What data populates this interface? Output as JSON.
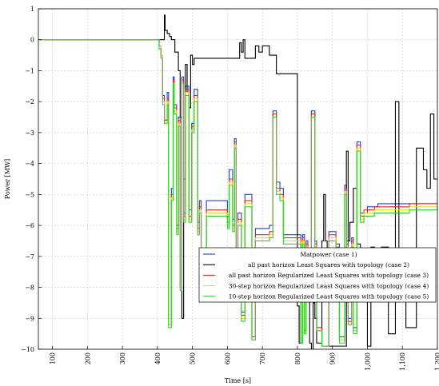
{
  "chart_data": {
    "type": "line",
    "xlabel": "Time [s]",
    "ylabel": "Power [MW]",
    "xlim": [
      60,
      1200
    ],
    "ylim": [
      -10,
      1
    ],
    "grid": true,
    "legend_position": "bottom-right",
    "x_ticks": [
      100,
      200,
      300,
      400,
      500,
      600,
      700,
      800,
      900,
      1000,
      1100,
      1200
    ],
    "x_tick_labels": [
      "100",
      "200",
      "300",
      "400",
      "500",
      "600",
      "700",
      "800",
      "900",
      "1,000",
      "1,100",
      "1,200"
    ],
    "y_ticks": [
      1,
      0,
      -1,
      -2,
      -3,
      -4,
      -5,
      -6,
      -7,
      -8,
      -9,
      -10
    ],
    "y_tick_labels": [
      "1",
      "0",
      "−1",
      "−2",
      "−3",
      "−4",
      "−5",
      "−6",
      "−7",
      "−8",
      "−9",
      "−10"
    ],
    "series": [
      {
        "name": "Matpower (case 1)",
        "color": "#1f3fd6",
        "x": [
          60,
          400,
          405,
          410,
          415,
          420,
          428,
          432,
          440,
          445,
          448,
          455,
          460,
          465,
          470,
          475,
          480,
          490,
          498,
          505,
          515,
          520,
          525,
          540,
          550,
          560,
          580,
          600,
          605,
          615,
          620,
          625,
          630,
          640,
          650,
          660,
          670,
          680,
          685,
          690,
          700,
          710,
          720,
          730,
          740,
          750,
          760,
          770,
          780,
          790,
          800,
          805,
          810,
          815,
          820,
          825,
          830,
          840,
          850,
          855,
          860,
          870,
          875,
          880,
          885,
          890,
          900,
          910,
          920,
          935,
          940,
          945,
          955,
          960,
          970,
          975,
          980,
          990,
          1000,
          1010,
          1020,
          1030,
          1040,
          1050,
          1060,
          1070,
          1080,
          1090,
          1100,
          1110,
          1120,
          1140,
          1160,
          1180,
          1190,
          1200
        ],
        "y": [
          0,
          0,
          -0.2,
          -0.5,
          -1.8,
          -2.6,
          -1.7,
          -9.2,
          -4.8,
          -1.2,
          -2.1,
          -6.0,
          -2.5,
          -8.0,
          -1.2,
          -5.6,
          -1.5,
          -5.5,
          -2.7,
          -1.6,
          -5.9,
          -5.2,
          -8.2,
          -5.2,
          -5.2,
          -5.2,
          -5.2,
          -5.7,
          -4.2,
          -5.8,
          -3.2,
          -6.8,
          -5.6,
          -8.8,
          -5.0,
          -5.0,
          -9.6,
          -6.1,
          -6.1,
          -6.1,
          -6.1,
          -6.1,
          -6.0,
          -2.3,
          -4.6,
          -4.8,
          -6.3,
          -6.3,
          -6.3,
          -6.3,
          -6.3,
          -6.3,
          -9.8,
          -6.3,
          -9.4,
          -6.5,
          -7.0,
          -2.3,
          -6.5,
          -9.3,
          -9.3,
          -9.9,
          -9.9,
          -9.9,
          -9.9,
          -6.2,
          -6.2,
          -6.6,
          -9.6,
          -4.7,
          -6.5,
          -9.0,
          -6.4,
          -9.3,
          -3.3,
          -3.3,
          -5.6,
          -5.6,
          -5.4,
          -5.4,
          -5.4,
          -5.3,
          -5.3,
          -5.3,
          -5.3,
          -5.3,
          -5.3,
          -5.3,
          -5.3,
          -5.3,
          -5.3,
          -5.3,
          -5.3,
          -5.3,
          -5.3,
          -5.5
        ]
      },
      {
        "name": "all past horizon Least Squares with topology (case 2)",
        "color": "#000000",
        "x": [
          60,
          400,
          410,
          420,
          422,
          428,
          435,
          440,
          450,
          460,
          465,
          470,
          475,
          480,
          485,
          490,
          495,
          500,
          505,
          520,
          530,
          560,
          580,
          600,
          610,
          615,
          620,
          630,
          635,
          640,
          645,
          650,
          660,
          665,
          670,
          680,
          690,
          700,
          710,
          720,
          740,
          750,
          760,
          770,
          780,
          790,
          800,
          805,
          810,
          815,
          820,
          825,
          830,
          835,
          840,
          845,
          850,
          855,
          860,
          870,
          875,
          880,
          885,
          890,
          900,
          910,
          920,
          930,
          935,
          940,
          945,
          950,
          960,
          965,
          970,
          980,
          990,
          1000,
          1010,
          1020,
          1030,
          1040,
          1050,
          1060,
          1070,
          1080,
          1090,
          1100,
          1110,
          1120,
          1130,
          1140,
          1150,
          1160,
          1170,
          1180,
          1190,
          1200
        ],
        "y": [
          0,
          0,
          0,
          0.8,
          0.3,
          0.2,
          0.1,
          0.0,
          -0.4,
          -1.0,
          -2.5,
          -9.0,
          -4.5,
          -0.8,
          -1.7,
          -2.2,
          -0.5,
          -0.8,
          -0.6,
          -0.6,
          -0.6,
          -0.6,
          -0.6,
          -0.6,
          -0.6,
          -0.6,
          -0.6,
          -0.6,
          -0.1,
          -0.4,
          0.0,
          -0.6,
          -0.6,
          -0.6,
          -0.6,
          -0.2,
          -0.4,
          -0.2,
          -0.2,
          -0.5,
          -1.1,
          -1.1,
          -1.1,
          -1.1,
          -1.1,
          -1.1,
          -8.6,
          -9.8,
          -7.0,
          -6.5,
          -8.2,
          -8.3,
          -8.3,
          -9.8,
          -10.0,
          -8.5,
          -9.0,
          -9.8,
          -9.8,
          -6.5,
          -5.0,
          -6.5,
          -7.0,
          -9.9,
          -9.9,
          -9.9,
          -9.9,
          -9.9,
          -9.9,
          -3.6,
          -6.5,
          -5.9,
          -4.8,
          -4.8,
          -6.6,
          -8.4,
          -8.3,
          -9.9,
          -6.7,
          -6.9,
          -6.8,
          -6.7,
          -6.7,
          -9.5,
          -9.5,
          -2.0,
          -6.8,
          -6.8,
          -9.3,
          -9.3,
          -9.3,
          -3.5,
          -3.5,
          -4.2,
          -4.8,
          -2.4,
          -4.5,
          -4.5
        ]
      },
      {
        "name": "all past horizon Regularized Least Squares with topology (case 3)",
        "color": "#e02a1c",
        "x": [
          60,
          400,
          405,
          410,
          415,
          420,
          428,
          432,
          440,
          445,
          448,
          455,
          460,
          465,
          470,
          475,
          480,
          490,
          498,
          505,
          515,
          520,
          525,
          540,
          560,
          580,
          600,
          605,
          615,
          620,
          625,
          630,
          640,
          650,
          660,
          670,
          680,
          690,
          700,
          720,
          730,
          740,
          750,
          760,
          780,
          800,
          810,
          815,
          820,
          825,
          830,
          840,
          850,
          855,
          860,
          870,
          880,
          890,
          900,
          910,
          920,
          935,
          940,
          945,
          955,
          960,
          970,
          980,
          990,
          1000,
          1020,
          1040,
          1060,
          1080,
          1100,
          1120,
          1140,
          1160,
          1180,
          1200
        ],
        "y": [
          0,
          0,
          -0.2,
          -0.5,
          -1.9,
          -2.6,
          -1.9,
          -9.2,
          -5.0,
          -1.3,
          -2.2,
          -6.1,
          -2.6,
          -8.0,
          -1.3,
          -5.7,
          -1.6,
          -5.7,
          -2.8,
          -1.8,
          -6.1,
          -5.4,
          -8.2,
          -5.5,
          -5.5,
          -5.5,
          -5.9,
          -4.5,
          -6.0,
          -3.3,
          -6.9,
          -5.8,
          -8.9,
          -5.2,
          -5.2,
          -9.6,
          -6.3,
          -6.3,
          -6.3,
          -6.2,
          -2.4,
          -4.8,
          -5.0,
          -6.4,
          -6.4,
          -6.4,
          -9.8,
          -6.4,
          -9.4,
          -6.6,
          -7.1,
          -2.4,
          -6.6,
          -9.3,
          -9.3,
          -9.9,
          -9.9,
          -6.3,
          -6.3,
          -6.7,
          -9.7,
          -4.8,
          -6.6,
          -9.1,
          -6.5,
          -9.4,
          -3.4,
          -5.7,
          -5.5,
          -5.5,
          -5.4,
          -5.4,
          -5.4,
          -5.4,
          -5.4,
          -5.3,
          -5.3,
          -5.3,
          -5.3,
          -5.2
        ]
      },
      {
        "name": "30-step horizon Regularized Least Squares with topology (case 4)",
        "color": "#f2d61c",
        "x": [
          60,
          400,
          405,
          410,
          415,
          420,
          428,
          432,
          440,
          445,
          448,
          455,
          460,
          465,
          470,
          475,
          480,
          490,
          498,
          505,
          515,
          520,
          525,
          540,
          560,
          580,
          600,
          605,
          615,
          620,
          625,
          630,
          640,
          650,
          660,
          670,
          680,
          690,
          700,
          720,
          730,
          740,
          750,
          760,
          780,
          800,
          810,
          815,
          820,
          825,
          830,
          840,
          850,
          855,
          860,
          870,
          880,
          890,
          900,
          910,
          920,
          935,
          940,
          945,
          955,
          960,
          970,
          980,
          990,
          1000,
          1020,
          1040,
          1060,
          1080,
          1100,
          1120,
          1140,
          1160,
          1180,
          1200
        ],
        "y": [
          0,
          0,
          -0.2,
          -0.5,
          -2.0,
          -2.7,
          -2.0,
          -9.2,
          -5.1,
          -1.4,
          -2.3,
          -6.2,
          -2.7,
          -8.0,
          -1.4,
          -5.8,
          -1.7,
          -5.8,
          -2.9,
          -1.9,
          -6.2,
          -5.5,
          -8.2,
          -5.6,
          -5.6,
          -5.6,
          -6.0,
          -4.6,
          -6.1,
          -3.4,
          -7.0,
          -5.9,
          -9.0,
          -5.3,
          -5.3,
          -9.7,
          -6.4,
          -6.4,
          -6.4,
          -6.3,
          -2.5,
          -4.9,
          -5.1,
          -6.5,
          -6.5,
          -6.5,
          -9.8,
          -6.5,
          -9.5,
          -6.7,
          -7.2,
          -2.5,
          -6.7,
          -9.4,
          -9.4,
          -9.9,
          -9.9,
          -6.4,
          -6.4,
          -6.8,
          -9.7,
          -4.9,
          -6.7,
          -9.2,
          -6.6,
          -9.4,
          -3.5,
          -5.8,
          -5.6,
          -5.6,
          -5.5,
          -5.5,
          -5.5,
          -5.5,
          -5.5,
          -5.4,
          -5.4,
          -5.4,
          -5.4,
          -5.3
        ]
      },
      {
        "name": "10-step horizon Regularized Least Squares with topology (case 5)",
        "color": "#2fcf2f",
        "x": [
          60,
          400,
          405,
          410,
          415,
          420,
          428,
          432,
          440,
          445,
          448,
          455,
          460,
          465,
          470,
          475,
          480,
          490,
          498,
          505,
          515,
          520,
          525,
          540,
          560,
          580,
          600,
          605,
          615,
          620,
          625,
          630,
          640,
          650,
          660,
          670,
          680,
          690,
          700,
          720,
          730,
          740,
          750,
          760,
          780,
          800,
          810,
          815,
          820,
          825,
          830,
          840,
          850,
          855,
          860,
          870,
          880,
          890,
          900,
          910,
          920,
          935,
          940,
          945,
          955,
          960,
          970,
          980,
          990,
          1000,
          1020,
          1040,
          1060,
          1080,
          1100,
          1120,
          1140,
          1160,
          1180,
          1200
        ],
        "y": [
          0,
          0,
          -0.3,
          -0.6,
          -2.1,
          -2.7,
          -2.1,
          -9.3,
          -5.2,
          -1.4,
          -2.4,
          -6.3,
          -2.8,
          -8.1,
          -1.4,
          -5.9,
          -1.8,
          -5.9,
          -3.0,
          -2.0,
          -6.3,
          -5.6,
          -8.3,
          -5.7,
          -5.7,
          -5.7,
          -6.1,
          -4.7,
          -6.2,
          -3.5,
          -7.1,
          -6.0,
          -9.1,
          -5.4,
          -5.4,
          -9.7,
          -6.5,
          -6.5,
          -6.5,
          -6.4,
          -2.5,
          -5.0,
          -5.2,
          -6.6,
          -6.6,
          -6.6,
          -9.8,
          -6.6,
          -9.5,
          -6.8,
          -7.3,
          -2.5,
          -6.8,
          -9.4,
          -9.4,
          -9.9,
          -9.9,
          -6.5,
          -6.5,
          -6.9,
          -9.8,
          -5.0,
          -6.8,
          -9.2,
          -6.7,
          -9.5,
          -3.6,
          -5.9,
          -5.7,
          -5.7,
          -5.6,
          -5.6,
          -5.6,
          -5.6,
          -5.6,
          -5.5,
          -5.5,
          -5.5,
          -5.5,
          -5.4
        ]
      }
    ]
  }
}
